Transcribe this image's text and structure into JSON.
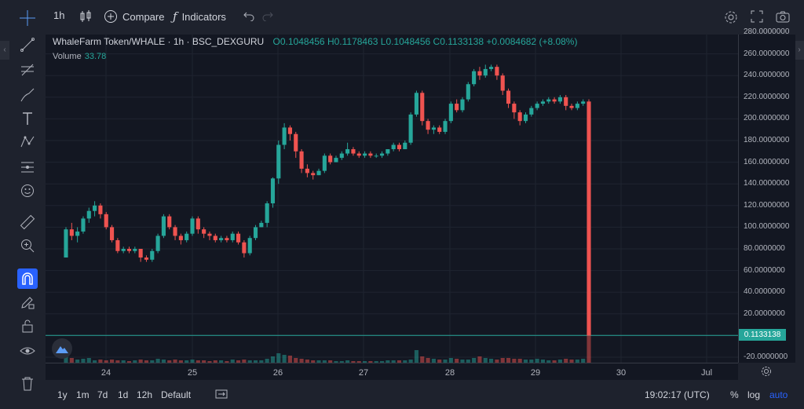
{
  "header": {
    "interval": "1h",
    "compare_label": "Compare",
    "indicators_label": "Indicators"
  },
  "legend": {
    "symbol": "WhaleFarm Token/WHALE · 1h · BSC_DEXGURU",
    "open": "O0.1048456",
    "high": "H0.1178463",
    "low": "L0.1048456",
    "close": "C0.1133138",
    "change": "+0.0084682 (+8.08%)",
    "volume_label": "Volume",
    "volume_value": "33.78"
  },
  "price_axis": {
    "labels": [
      "280.0000000",
      "260.0000000",
      "240.0000000",
      "220.0000000",
      "200.0000000",
      "180.0000000",
      "160.0000000",
      "140.0000000",
      "120.0000000",
      "100.0000000",
      "80.0000000",
      "60.0000000",
      "40.0000000",
      "20.0000000",
      "-20.0000000"
    ],
    "last_price": "0.1133138"
  },
  "time_axis": {
    "labels": [
      "24",
      "25",
      "26",
      "27",
      "28",
      "29",
      "30",
      "Jul"
    ]
  },
  "bottom": {
    "ranges": [
      "1y",
      "1m",
      "7d",
      "1d",
      "12h",
      "Default"
    ],
    "clock": "19:02:17 (UTC)",
    "percent": "%",
    "log": "log",
    "auto": "auto"
  },
  "colors": {
    "up": "#26a69a",
    "down": "#ef5350",
    "background": "#131722"
  },
  "chart_data": {
    "type": "candlestick",
    "x_labels": [
      "24",
      "25",
      "26",
      "27",
      "28",
      "29",
      "30",
      "Jul"
    ],
    "ylim": [
      -20,
      280
    ],
    "candles": [
      [
        72,
        98,
        72,
        100
      ],
      [
        98,
        92,
        88,
        104
      ],
      [
        92,
        96,
        86,
        100
      ],
      [
        96,
        108,
        94,
        110
      ],
      [
        108,
        115,
        104,
        118
      ],
      [
        115,
        120,
        110,
        124
      ],
      [
        120,
        112,
        108,
        122
      ],
      [
        112,
        100,
        98,
        114
      ],
      [
        100,
        88,
        86,
        102
      ],
      [
        88,
        78,
        76,
        90
      ],
      [
        78,
        80,
        76,
        82
      ],
      [
        80,
        78,
        76,
        82
      ],
      [
        78,
        80,
        76,
        82
      ],
      [
        80,
        72,
        68,
        80
      ],
      [
        72,
        70,
        68,
        74
      ],
      [
        70,
        78,
        68,
        80
      ],
      [
        78,
        92,
        76,
        94
      ],
      [
        92,
        110,
        90,
        112
      ],
      [
        110,
        100,
        98,
        112
      ],
      [
        100,
        92,
        88,
        102
      ],
      [
        92,
        88,
        84,
        94
      ],
      [
        88,
        94,
        86,
        96
      ],
      [
        94,
        108,
        92,
        110
      ],
      [
        108,
        98,
        94,
        110
      ],
      [
        98,
        94,
        90,
        100
      ],
      [
        94,
        92,
        88,
        96
      ],
      [
        92,
        88,
        86,
        94
      ],
      [
        88,
        90,
        86,
        92
      ],
      [
        90,
        88,
        86,
        92
      ],
      [
        88,
        94,
        86,
        96
      ],
      [
        94,
        86,
        84,
        96
      ],
      [
        86,
        76,
        72,
        88
      ],
      [
        76,
        90,
        74,
        92
      ],
      [
        90,
        100,
        88,
        102
      ],
      [
        100,
        104,
        100,
        106
      ],
      [
        104,
        122,
        100,
        124
      ],
      [
        122,
        145,
        118,
        146
      ],
      [
        145,
        176,
        140,
        180
      ],
      [
        176,
        192,
        172,
        196
      ],
      [
        192,
        186,
        180,
        194
      ],
      [
        186,
        170,
        164,
        188
      ],
      [
        170,
        154,
        150,
        172
      ],
      [
        154,
        150,
        146,
        158
      ],
      [
        150,
        148,
        144,
        152
      ],
      [
        148,
        152,
        148,
        154
      ],
      [
        152,
        166,
        150,
        168
      ],
      [
        166,
        160,
        158,
        168
      ],
      [
        160,
        164,
        160,
        166
      ],
      [
        164,
        168,
        162,
        170
      ],
      [
        168,
        172,
        166,
        178
      ],
      [
        172,
        168,
        166,
        174
      ],
      [
        168,
        166,
        164,
        170
      ],
      [
        166,
        168,
        164,
        170
      ],
      [
        168,
        166,
        164,
        170
      ],
      [
        166,
        166,
        164,
        168
      ],
      [
        166,
        168,
        164,
        170
      ],
      [
        168,
        172,
        166,
        172
      ],
      [
        172,
        176,
        170,
        178
      ],
      [
        176,
        172,
        170,
        178
      ],
      [
        172,
        178,
        172,
        180
      ],
      [
        178,
        204,
        176,
        206
      ],
      [
        204,
        224,
        202,
        226
      ],
      [
        224,
        198,
        194,
        226
      ],
      [
        198,
        190,
        186,
        200
      ],
      [
        190,
        192,
        186,
        194
      ],
      [
        192,
        188,
        186,
        194
      ],
      [
        188,
        198,
        186,
        200
      ],
      [
        198,
        214,
        196,
        216
      ],
      [
        214,
        208,
        206,
        218
      ],
      [
        208,
        218,
        206,
        220
      ],
      [
        218,
        232,
        216,
        234
      ],
      [
        232,
        244,
        230,
        246
      ],
      [
        244,
        240,
        236,
        248
      ],
      [
        240,
        246,
        238,
        250
      ],
      [
        246,
        248,
        244,
        250
      ],
      [
        248,
        240,
        236,
        250
      ],
      [
        240,
        226,
        222,
        242
      ],
      [
        226,
        214,
        210,
        228
      ],
      [
        214,
        206,
        200,
        216
      ],
      [
        206,
        198,
        194,
        208
      ],
      [
        198,
        204,
        196,
        206
      ],
      [
        204,
        210,
        202,
        212
      ],
      [
        210,
        214,
        208,
        216
      ],
      [
        214,
        216,
        212,
        218
      ],
      [
        216,
        218,
        214,
        220
      ],
      [
        218,
        216,
        214,
        220
      ],
      [
        216,
        220,
        214,
        222
      ],
      [
        220,
        212,
        208,
        222
      ],
      [
        212,
        210,
        208,
        214
      ],
      [
        210,
        214,
        208,
        216
      ],
      [
        214,
        216,
        212,
        218
      ],
      [
        216,
        0.11,
        0.1,
        218
      ]
    ]
  }
}
